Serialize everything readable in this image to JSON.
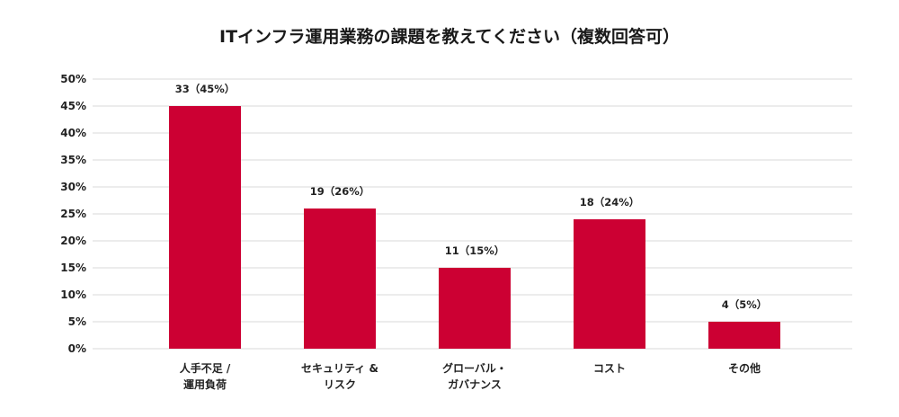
{
  "chart_data": {
    "type": "bar",
    "title": "ITインフラ運用業務の課題を教えてください（複数回答可）",
    "categories": [
      [
        "人手不足 /",
        "運用負荷"
      ],
      [
        "セキュリティ &",
        "リスク"
      ],
      [
        "グローバル・",
        "ガバナンス"
      ],
      [
        "コスト"
      ],
      [
        "その他"
      ]
    ],
    "values": [
      45,
      26,
      15,
      24,
      5
    ],
    "counts": [
      33,
      19,
      11,
      18,
      4
    ],
    "data_labels": [
      "33（45%）",
      "19（26%）",
      "11（15%）",
      "18（24%）",
      "4（5%）"
    ],
    "ylim": [
      0,
      50
    ],
    "y_ticks": [
      "0%",
      "5%",
      "10%",
      "15%",
      "20%",
      "25%",
      "30%",
      "35%",
      "40%",
      "45%",
      "50%"
    ],
    "y_tick_values": [
      0,
      5,
      10,
      15,
      20,
      25,
      30,
      35,
      40,
      45,
      50
    ],
    "xlabel": "",
    "ylabel": "",
    "grid": true,
    "legend": "none",
    "bar_color": "#cc0033",
    "grid_color": "#d9d9d9"
  }
}
